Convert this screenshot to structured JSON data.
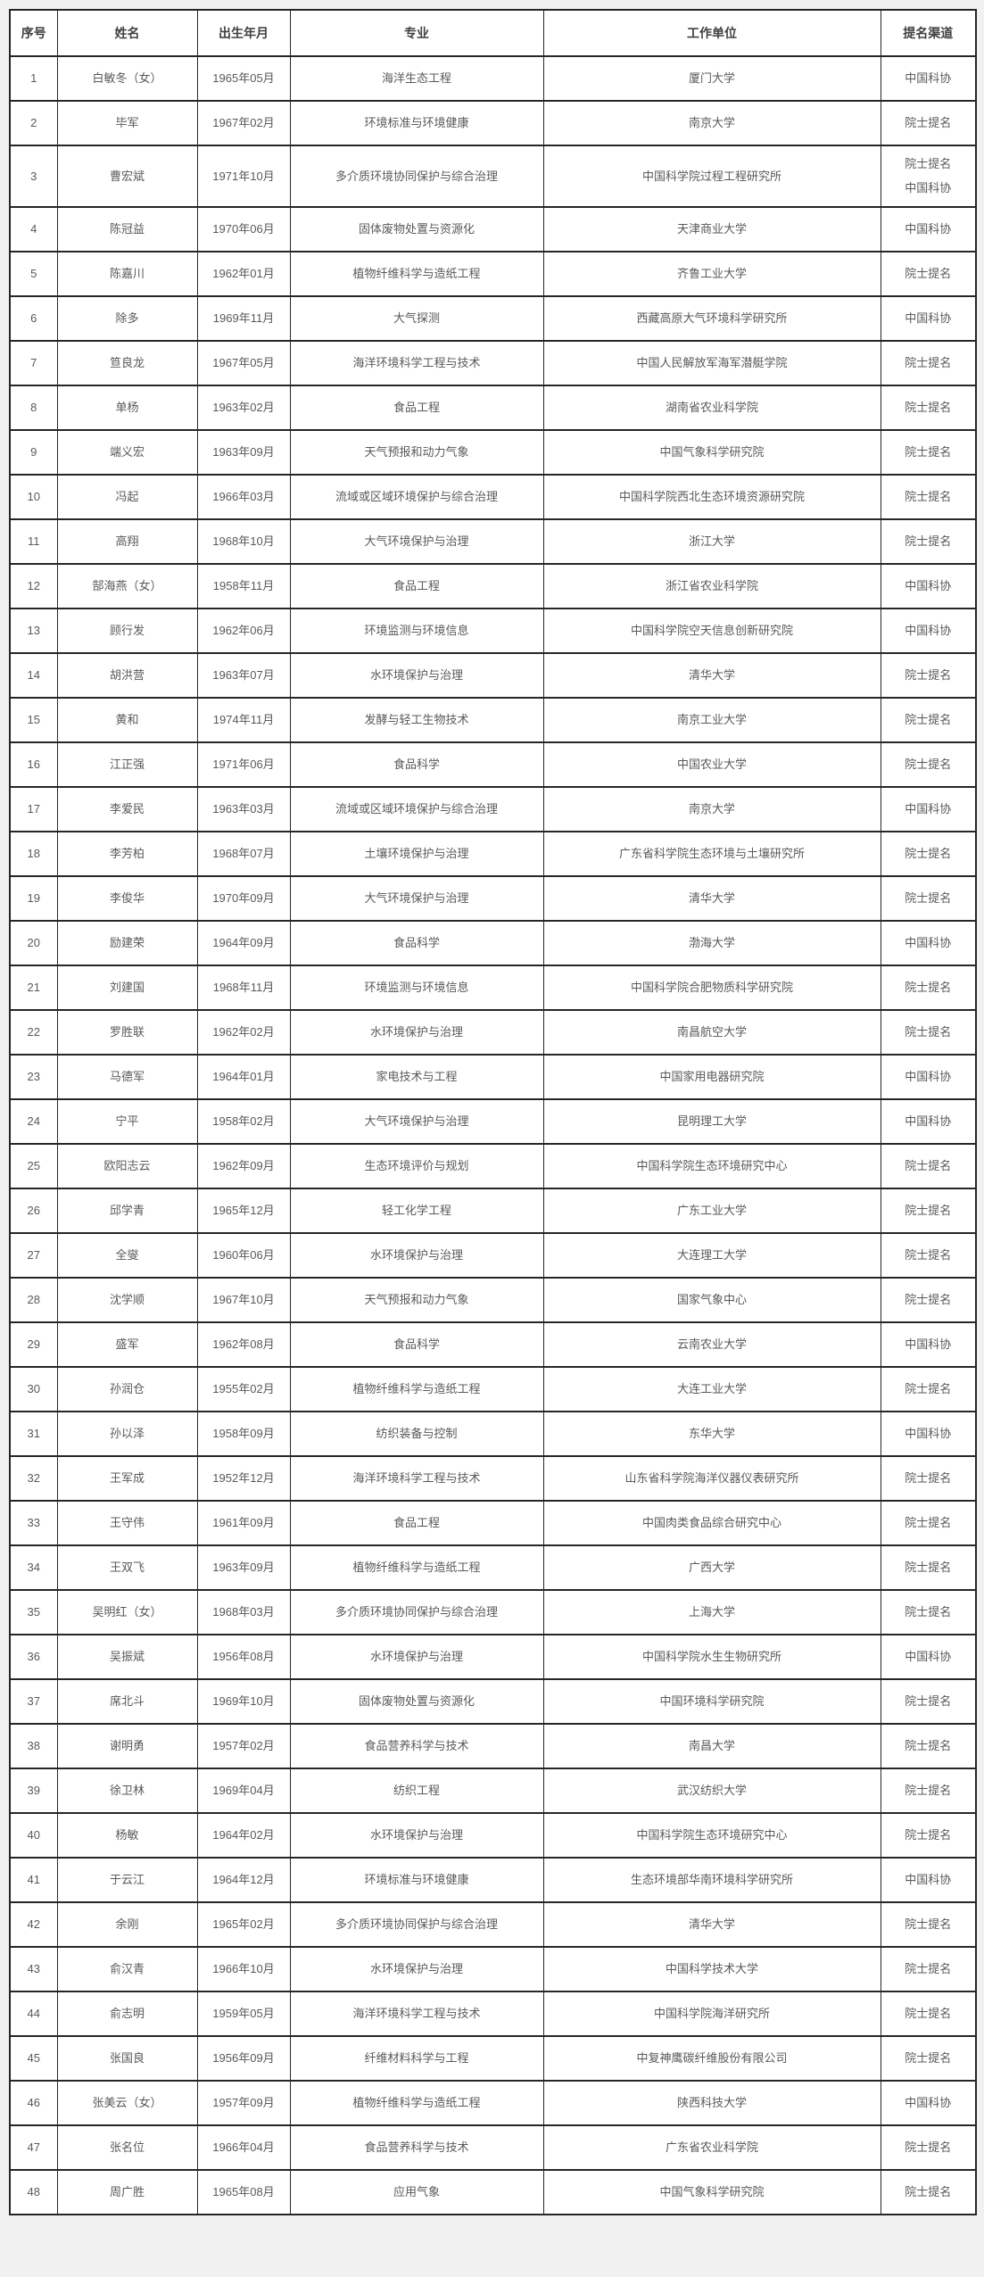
{
  "table": {
    "headers": [
      "序号",
      "姓名",
      "出生年月",
      "专业",
      "工作单位",
      "提名渠道"
    ],
    "rows": [
      [
        "1",
        "白敏冬（女）",
        "1965年05月",
        "海洋生态工程",
        "厦门大学",
        "中国科协"
      ],
      [
        "2",
        "毕军",
        "1967年02月",
        "环境标准与环境健康",
        "南京大学",
        "院士提名"
      ],
      [
        "3",
        "曹宏斌",
        "1971年10月",
        "多介质环境协同保护与综合治理",
        "中国科学院过程工程研究所",
        [
          "院士提名",
          "中国科协"
        ]
      ],
      [
        "4",
        "陈冠益",
        "1970年06月",
        "固体废物处置与资源化",
        "天津商业大学",
        "中国科协"
      ],
      [
        "5",
        "陈嘉川",
        "1962年01月",
        "植物纤维科学与造纸工程",
        "齐鲁工业大学",
        "院士提名"
      ],
      [
        "6",
        "除多",
        "1969年11月",
        "大气探测",
        "西藏高原大气环境科学研究所",
        "中国科协"
      ],
      [
        "7",
        "笪良龙",
        "1967年05月",
        "海洋环境科学工程与技术",
        "中国人民解放军海军潜艇学院",
        "院士提名"
      ],
      [
        "8",
        "单杨",
        "1963年02月",
        "食品工程",
        "湖南省农业科学院",
        "院士提名"
      ],
      [
        "9",
        "端义宏",
        "1963年09月",
        "天气预报和动力气象",
        "中国气象科学研究院",
        "院士提名"
      ],
      [
        "10",
        "冯起",
        "1966年03月",
        "流域或区域环境保护与综合治理",
        "中国科学院西北生态环境资源研究院",
        "院士提名"
      ],
      [
        "11",
        "高翔",
        "1968年10月",
        "大气环境保护与治理",
        "浙江大学",
        "院士提名"
      ],
      [
        "12",
        "郜海燕（女）",
        "1958年11月",
        "食品工程",
        "浙江省农业科学院",
        "中国科协"
      ],
      [
        "13",
        "顾行发",
        "1962年06月",
        "环境监测与环境信息",
        "中国科学院空天信息创新研究院",
        "中国科协"
      ],
      [
        "14",
        "胡洪营",
        "1963年07月",
        "水环境保护与治理",
        "清华大学",
        "院士提名"
      ],
      [
        "15",
        "黄和",
        "1974年11月",
        "发酵与轻工生物技术",
        "南京工业大学",
        "院士提名"
      ],
      [
        "16",
        "江正强",
        "1971年06月",
        "食品科学",
        "中国农业大学",
        "院士提名"
      ],
      [
        "17",
        "李爱民",
        "1963年03月",
        "流域或区域环境保护与综合治理",
        "南京大学",
        "中国科协"
      ],
      [
        "18",
        "李芳柏",
        "1968年07月",
        "土壤环境保护与治理",
        "广东省科学院生态环境与土壤研究所",
        "院士提名"
      ],
      [
        "19",
        "李俊华",
        "1970年09月",
        "大气环境保护与治理",
        "清华大学",
        "院士提名"
      ],
      [
        "20",
        "励建荣",
        "1964年09月",
        "食品科学",
        "渤海大学",
        "中国科协"
      ],
      [
        "21",
        "刘建国",
        "1968年11月",
        "环境监测与环境信息",
        "中国科学院合肥物质科学研究院",
        "院士提名"
      ],
      [
        "22",
        "罗胜联",
        "1962年02月",
        "水环境保护与治理",
        "南昌航空大学",
        "院士提名"
      ],
      [
        "23",
        "马德军",
        "1964年01月",
        "家电技术与工程",
        "中国家用电器研究院",
        "中国科协"
      ],
      [
        "24",
        "宁平",
        "1958年02月",
        "大气环境保护与治理",
        "昆明理工大学",
        "中国科协"
      ],
      [
        "25",
        "欧阳志云",
        "1962年09月",
        "生态环境评价与规划",
        "中国科学院生态环境研究中心",
        "院士提名"
      ],
      [
        "26",
        "邱学青",
        "1965年12月",
        "轻工化学工程",
        "广东工业大学",
        "院士提名"
      ],
      [
        "27",
        "全燮",
        "1960年06月",
        "水环境保护与治理",
        "大连理工大学",
        "院士提名"
      ],
      [
        "28",
        "沈学顺",
        "1967年10月",
        "天气预报和动力气象",
        "国家气象中心",
        "院士提名"
      ],
      [
        "29",
        "盛军",
        "1962年08月",
        "食品科学",
        "云南农业大学",
        "中国科协"
      ],
      [
        "30",
        "孙润仓",
        "1955年02月",
        "植物纤维科学与造纸工程",
        "大连工业大学",
        "院士提名"
      ],
      [
        "31",
        "孙以泽",
        "1958年09月",
        "纺织装备与控制",
        "东华大学",
        "中国科协"
      ],
      [
        "32",
        "王军成",
        "1952年12月",
        "海洋环境科学工程与技术",
        "山东省科学院海洋仪器仪表研究所",
        "院士提名"
      ],
      [
        "33",
        "王守伟",
        "1961年09月",
        "食品工程",
        "中国肉类食品综合研究中心",
        "院士提名"
      ],
      [
        "34",
        "王双飞",
        "1963年09月",
        "植物纤维科学与造纸工程",
        "广西大学",
        "院士提名"
      ],
      [
        "35",
        "吴明红（女）",
        "1968年03月",
        "多介质环境协同保护与综合治理",
        "上海大学",
        "院士提名"
      ],
      [
        "36",
        "吴振斌",
        "1956年08月",
        "水环境保护与治理",
        "中国科学院水生生物研究所",
        "中国科协"
      ],
      [
        "37",
        "席北斗",
        "1969年10月",
        "固体废物处置与资源化",
        "中国环境科学研究院",
        "院士提名"
      ],
      [
        "38",
        "谢明勇",
        "1957年02月",
        "食品营养科学与技术",
        "南昌大学",
        "院士提名"
      ],
      [
        "39",
        "徐卫林",
        "1969年04月",
        "纺织工程",
        "武汉纺织大学",
        "院士提名"
      ],
      [
        "40",
        "杨敏",
        "1964年02月",
        "水环境保护与治理",
        "中国科学院生态环境研究中心",
        "院士提名"
      ],
      [
        "41",
        "于云江",
        "1964年12月",
        "环境标准与环境健康",
        "生态环境部华南环境科学研究所",
        "中国科协"
      ],
      [
        "42",
        "余刚",
        "1965年02月",
        "多介质环境协同保护与综合治理",
        "清华大学",
        "院士提名"
      ],
      [
        "43",
        "俞汉青",
        "1966年10月",
        "水环境保护与治理",
        "中国科学技术大学",
        "院士提名"
      ],
      [
        "44",
        "俞志明",
        "1959年05月",
        "海洋环境科学工程与技术",
        "中国科学院海洋研究所",
        "院士提名"
      ],
      [
        "45",
        "张国良",
        "1956年09月",
        "纤维材料科学与工程",
        "中复神鹰碳纤维股份有限公司",
        "院士提名"
      ],
      [
        "46",
        "张美云（女）",
        "1957年09月",
        "植物纤维科学与造纸工程",
        "陕西科技大学",
        "中国科协"
      ],
      [
        "47",
        "张名位",
        "1966年04月",
        "食品营养科学与技术",
        "广东省农业科学院",
        "院士提名"
      ],
      [
        "48",
        "周广胜",
        "1965年08月",
        "应用气象",
        "中国气象科学研究院",
        "院士提名"
      ]
    ]
  }
}
